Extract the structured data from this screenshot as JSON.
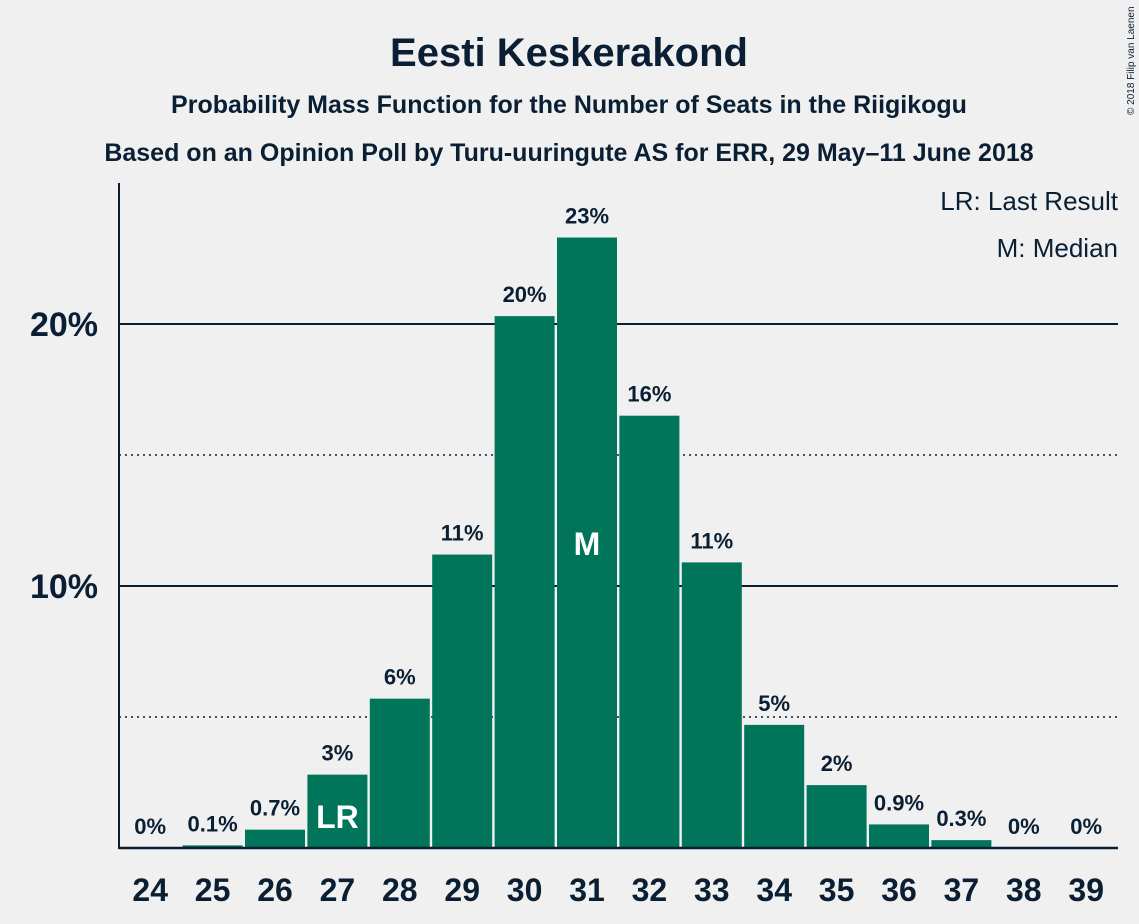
{
  "chart_data": {
    "type": "bar",
    "title": "Eesti Keskerakond",
    "subtitle": "Probability Mass Function for the Number of Seats in the Riigikogu",
    "subtitle2": "Based on an Opinion Poll by Turu-uuringute AS for ERR, 29 May–11 June 2018",
    "categories": [
      "24",
      "25",
      "26",
      "27",
      "28",
      "29",
      "30",
      "31",
      "32",
      "33",
      "34",
      "35",
      "36",
      "37",
      "38",
      "39"
    ],
    "values": [
      0,
      0.1,
      0.7,
      2.8,
      5.7,
      11.2,
      20.3,
      23.3,
      16.5,
      10.9,
      4.7,
      2.4,
      0.9,
      0.3,
      0,
      0
    ],
    "data_labels": [
      "0%",
      "0.1%",
      "0.7%",
      "3%",
      "6%",
      "11%",
      "20%",
      "23%",
      "16%",
      "11%",
      "5%",
      "2%",
      "0.9%",
      "0.3%",
      "0%",
      "0%"
    ],
    "yticks": [
      {
        "value": 10,
        "label": "10%"
      },
      {
        "value": 20,
        "label": "20%"
      }
    ],
    "minor_gridlines": [
      5,
      15
    ],
    "ylim": [
      0,
      25
    ],
    "markers": [
      {
        "category": "27",
        "label": "LR"
      },
      {
        "category": "31",
        "label": "M"
      }
    ],
    "legend": [
      "LR: Last Result",
      "M: Median"
    ],
    "legend_position": "top-right",
    "bar_color": "#00755a",
    "copyright": "© 2018 Filip van Laenen"
  }
}
